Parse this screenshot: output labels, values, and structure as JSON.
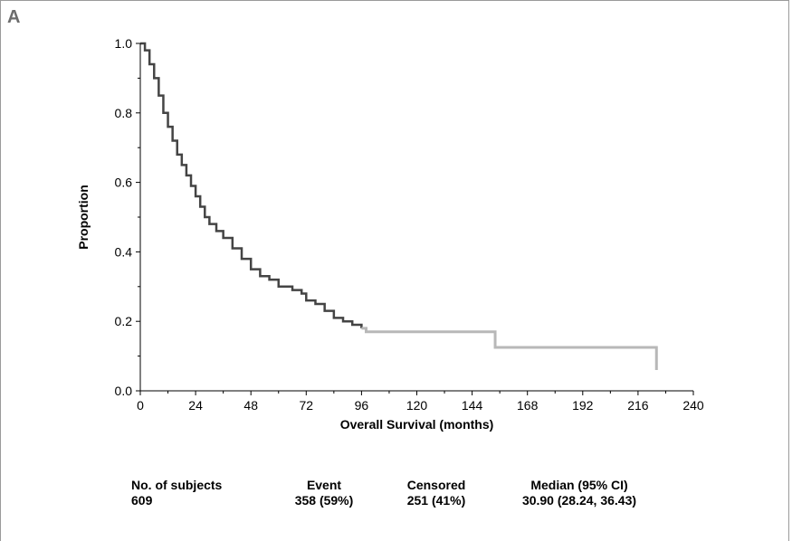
{
  "panel_label": "A",
  "summary": {
    "subjects": {
      "header": "No. of subjects",
      "value": "609"
    },
    "event": {
      "header": "Event",
      "value": "358 (59%)"
    },
    "censored": {
      "header": "Censored",
      "value": "251 (41%)"
    },
    "median": {
      "header": "Median (95% CI)",
      "value": "30.90 (28.24, 36.43)"
    }
  },
  "chart_data": {
    "type": "line",
    "subtype": "kaplan-meier-step",
    "xlabel": "Overall Survival (months)",
    "ylabel": "Proportion",
    "xlim": [
      0,
      240
    ],
    "ylim": [
      0,
      1.0
    ],
    "xticks": [
      0,
      24,
      48,
      72,
      96,
      120,
      144,
      168,
      192,
      216,
      240
    ],
    "yticks": [
      0.0,
      0.2,
      0.4,
      0.6,
      0.8,
      1.0
    ],
    "ytick_labels": [
      "0.0",
      "0.2",
      "0.4",
      "0.6",
      "0.8",
      "1.0"
    ],
    "grid": false,
    "series": [
      {
        "color": "#444444",
        "tail_color": "#b8b8b8",
        "x": [
          0,
          2,
          4,
          6,
          8,
          10,
          12,
          14,
          16,
          18,
          20,
          22,
          24,
          26,
          28,
          30,
          33,
          36,
          40,
          44,
          48,
          52,
          56,
          60,
          66,
          70,
          72,
          76,
          80,
          84,
          88,
          92,
          96,
          98,
          100,
          152,
          154,
          222,
          224
        ],
        "y": [
          1.0,
          0.98,
          0.94,
          0.9,
          0.85,
          0.8,
          0.76,
          0.72,
          0.68,
          0.65,
          0.62,
          0.59,
          0.56,
          0.53,
          0.5,
          0.48,
          0.46,
          0.44,
          0.41,
          0.38,
          0.35,
          0.33,
          0.32,
          0.3,
          0.29,
          0.28,
          0.26,
          0.25,
          0.23,
          0.21,
          0.2,
          0.19,
          0.18,
          0.17,
          0.17,
          0.17,
          0.125,
          0.125,
          0.06
        ]
      }
    ]
  }
}
